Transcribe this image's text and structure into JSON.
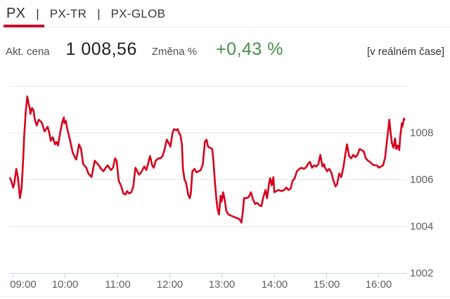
{
  "tabs": {
    "separator": "|",
    "items": [
      {
        "label": "PX",
        "active": true
      },
      {
        "label": "PX-TR",
        "active": false
      },
      {
        "label": "PX-GLOB",
        "active": false
      }
    ]
  },
  "quote": {
    "price_label": "Akt. cena",
    "price_value": "1 008,56",
    "change_label": "Změna %",
    "change_value": "+0,43 %",
    "realtime_note": "[v reálném čase]"
  },
  "colors": {
    "accent_red": "#c8102e",
    "series_red": "#d6001c",
    "positive_green": "#479147",
    "grid": "#e6e6e6",
    "axis_line": "#ccd6eb",
    "axis_label": "#5f6062"
  },
  "chart_data": {
    "type": "line",
    "title": "",
    "xlabel": "",
    "ylabel": "",
    "legend": "none",
    "grid": true,
    "x_unit": "hour-of-day",
    "xlim": [
      8.95,
      16.5
    ],
    "ylim": [
      1002,
      1010
    ],
    "x_tick_hours": [
      9,
      10,
      11,
      12,
      13,
      14,
      15,
      16
    ],
    "x_tick_labels": [
      "09:00",
      "10:00",
      "11:00",
      "12:00",
      "13:00",
      "14:00",
      "15:00",
      "16:00"
    ],
    "y_gridline_values": [
      1010,
      1008,
      1006,
      1004,
      1002
    ],
    "y_tick_values": [
      1008,
      1006,
      1004,
      1002
    ],
    "y_tick_labels": [
      "1008",
      "1006",
      "1004",
      "1002"
    ],
    "series": [
      {
        "name": "PX",
        "points": [
          [
            8.95,
            1006.05
          ],
          [
            8.98,
            1005.9
          ],
          [
            9.01,
            1005.65
          ],
          [
            9.03,
            1005.8
          ],
          [
            9.07,
            1006.45
          ],
          [
            9.1,
            1006.1
          ],
          [
            9.14,
            1005.2
          ],
          [
            9.17,
            1005.6
          ],
          [
            9.2,
            1006.8
          ],
          [
            9.22,
            1007.8
          ],
          [
            9.25,
            1008.9
          ],
          [
            9.28,
            1009.55
          ],
          [
            9.3,
            1009.3
          ],
          [
            9.33,
            1009.0
          ],
          [
            9.34,
            1008.8
          ],
          [
            9.37,
            1009.05
          ],
          [
            9.4,
            1008.95
          ],
          [
            9.42,
            1008.6
          ],
          [
            9.46,
            1008.3
          ],
          [
            9.5,
            1008.55
          ],
          [
            9.55,
            1008.45
          ],
          [
            9.57,
            1008.35
          ],
          [
            9.61,
            1008.05
          ],
          [
            9.67,
            1008.25
          ],
          [
            9.71,
            1007.9
          ],
          [
            9.73,
            1007.65
          ],
          [
            9.77,
            1007.8
          ],
          [
            9.81,
            1007.5
          ],
          [
            9.84,
            1007.6
          ],
          [
            9.87,
            1007.45
          ],
          [
            9.91,
            1008.0
          ],
          [
            9.95,
            1008.45
          ],
          [
            9.98,
            1008.65
          ],
          [
            9.99,
            1008.4
          ],
          [
            10.02,
            1008.5
          ],
          [
            10.04,
            1008.2
          ],
          [
            10.07,
            1007.95
          ],
          [
            10.11,
            1007.55
          ],
          [
            10.15,
            1007.15
          ],
          [
            10.2,
            1006.9
          ],
          [
            10.22,
            1006.85
          ],
          [
            10.27,
            1007.5
          ],
          [
            10.31,
            1007.3
          ],
          [
            10.35,
            1006.65
          ],
          [
            10.41,
            1006.5
          ],
          [
            10.45,
            1006.25
          ],
          [
            10.49,
            1006.15
          ],
          [
            10.51,
            1006.1
          ],
          [
            10.57,
            1006.8
          ],
          [
            10.61,
            1006.7
          ],
          [
            10.65,
            1006.6
          ],
          [
            10.69,
            1006.45
          ],
          [
            10.74,
            1006.35
          ],
          [
            10.78,
            1006.5
          ],
          [
            10.82,
            1006.6
          ],
          [
            10.88,
            1006.4
          ],
          [
            10.92,
            1006.5
          ],
          [
            10.96,
            1006.9
          ],
          [
            10.99,
            1006.8
          ],
          [
            11.03,
            1005.95
          ],
          [
            11.08,
            1005.7
          ],
          [
            11.12,
            1005.4
          ],
          [
            11.16,
            1005.35
          ],
          [
            11.19,
            1005.5
          ],
          [
            11.23,
            1005.4
          ],
          [
            11.27,
            1005.45
          ],
          [
            11.31,
            1005.7
          ],
          [
            11.35,
            1006.5
          ],
          [
            11.42,
            1006.2
          ],
          [
            11.46,
            1006.3
          ],
          [
            11.52,
            1006.55
          ],
          [
            11.56,
            1006.4
          ],
          [
            11.63,
            1007.0
          ],
          [
            11.67,
            1006.6
          ],
          [
            11.7,
            1006.5
          ],
          [
            11.74,
            1006.8
          ],
          [
            11.79,
            1006.9
          ],
          [
            11.83,
            1006.9
          ],
          [
            11.87,
            1007.0
          ],
          [
            11.91,
            1007.3
          ],
          [
            11.95,
            1007.7
          ],
          [
            12.0,
            1007.5
          ],
          [
            12.02,
            1007.4
          ],
          [
            12.06,
            1008.0
          ],
          [
            12.09,
            1008.15
          ],
          [
            12.13,
            1008.1
          ],
          [
            12.16,
            1008.15
          ],
          [
            12.18,
            1008.0
          ],
          [
            12.21,
            1007.9
          ],
          [
            12.24,
            1007.5
          ],
          [
            12.26,
            1006.45
          ],
          [
            12.29,
            1006.0
          ],
          [
            12.32,
            1005.85
          ],
          [
            12.36,
            1005.35
          ],
          [
            12.39,
            1005.2
          ],
          [
            12.41,
            1005.4
          ],
          [
            12.44,
            1006.35
          ],
          [
            12.48,
            1006.45
          ],
          [
            12.52,
            1006.3
          ],
          [
            12.56,
            1006.35
          ],
          [
            12.6,
            1006.4
          ],
          [
            12.64,
            1006.65
          ],
          [
            12.68,
            1007.6
          ],
          [
            12.71,
            1007.7
          ],
          [
            12.74,
            1007.4
          ],
          [
            12.78,
            1007.35
          ],
          [
            12.82,
            1007.3
          ],
          [
            12.84,
            1006.9
          ],
          [
            12.87,
            1005.95
          ],
          [
            12.9,
            1005.15
          ],
          [
            12.92,
            1004.75
          ],
          [
            12.95,
            1004.5
          ],
          [
            12.98,
            1005.3
          ],
          [
            13.0,
            1005.05
          ],
          [
            13.03,
            1005.45
          ],
          [
            13.06,
            1005.1
          ],
          [
            13.09,
            1004.65
          ],
          [
            13.13,
            1004.5
          ],
          [
            13.18,
            1004.45
          ],
          [
            13.23,
            1004.4
          ],
          [
            13.29,
            1004.35
          ],
          [
            13.34,
            1004.3
          ],
          [
            13.38,
            1004.15
          ],
          [
            13.41,
            1004.7
          ],
          [
            13.43,
            1005.2
          ],
          [
            13.48,
            1005.2
          ],
          [
            13.52,
            1005.25
          ],
          [
            13.56,
            1005.45
          ],
          [
            13.6,
            1005.15
          ],
          [
            13.64,
            1004.95
          ],
          [
            13.68,
            1005.0
          ],
          [
            13.72,
            1004.9
          ],
          [
            13.76,
            1004.85
          ],
          [
            13.8,
            1005.25
          ],
          [
            13.84,
            1005.55
          ],
          [
            13.87,
            1005.2
          ],
          [
            13.91,
            1005.85
          ],
          [
            13.93,
            1006.05
          ],
          [
            13.96,
            1005.75
          ],
          [
            13.99,
            1006.1
          ],
          [
            14.01,
            1005.45
          ],
          [
            14.05,
            1005.5
          ],
          [
            14.09,
            1005.55
          ],
          [
            14.15,
            1005.5
          ],
          [
            14.2,
            1005.55
          ],
          [
            14.24,
            1005.65
          ],
          [
            14.28,
            1005.55
          ],
          [
            14.32,
            1005.6
          ],
          [
            14.36,
            1005.95
          ],
          [
            14.4,
            1006.05
          ],
          [
            14.44,
            1006.35
          ],
          [
            14.49,
            1006.45
          ],
          [
            14.53,
            1006.5
          ],
          [
            14.57,
            1006.45
          ],
          [
            14.61,
            1006.5
          ],
          [
            14.65,
            1006.65
          ],
          [
            14.69,
            1006.75
          ],
          [
            14.73,
            1006.5
          ],
          [
            14.77,
            1006.6
          ],
          [
            14.81,
            1006.55
          ],
          [
            14.85,
            1006.65
          ],
          [
            14.89,
            1007.05
          ],
          [
            14.93,
            1006.55
          ],
          [
            14.96,
            1006.65
          ],
          [
            14.98,
            1006.5
          ],
          [
            15.02,
            1006.35
          ],
          [
            15.06,
            1006.45
          ],
          [
            15.1,
            1006.3
          ],
          [
            15.14,
            1005.95
          ],
          [
            15.18,
            1005.7
          ],
          [
            15.21,
            1005.8
          ],
          [
            15.25,
            1006.25
          ],
          [
            15.29,
            1006.1
          ],
          [
            15.33,
            1006.5
          ],
          [
            15.37,
            1007.1
          ],
          [
            15.4,
            1007.5
          ],
          [
            15.44,
            1007.0
          ],
          [
            15.48,
            1006.9
          ],
          [
            15.52,
            1007.05
          ],
          [
            15.56,
            1006.95
          ],
          [
            15.6,
            1007.05
          ],
          [
            15.64,
            1007.3
          ],
          [
            15.68,
            1007.25
          ],
          [
            15.72,
            1007.2
          ],
          [
            15.76,
            1006.9
          ],
          [
            15.8,
            1006.8
          ],
          [
            15.84,
            1006.75
          ],
          [
            15.88,
            1006.65
          ],
          [
            15.93,
            1006.6
          ],
          [
            15.97,
            1006.6
          ],
          [
            16.01,
            1006.5
          ],
          [
            16.05,
            1006.55
          ],
          [
            16.09,
            1006.6
          ],
          [
            16.13,
            1006.95
          ],
          [
            16.15,
            1007.35
          ],
          [
            16.18,
            1007.95
          ],
          [
            16.21,
            1008.55
          ],
          [
            16.23,
            1008.1
          ],
          [
            16.26,
            1007.55
          ],
          [
            16.29,
            1007.35
          ],
          [
            16.32,
            1007.75
          ],
          [
            16.34,
            1007.3
          ],
          [
            16.37,
            1007.45
          ],
          [
            16.4,
            1007.25
          ],
          [
            16.42,
            1007.85
          ],
          [
            16.45,
            1008.4
          ],
          [
            16.46,
            1008.25
          ],
          [
            16.49,
            1008.6
          ],
          [
            16.5,
            1008.56
          ]
        ]
      }
    ]
  }
}
